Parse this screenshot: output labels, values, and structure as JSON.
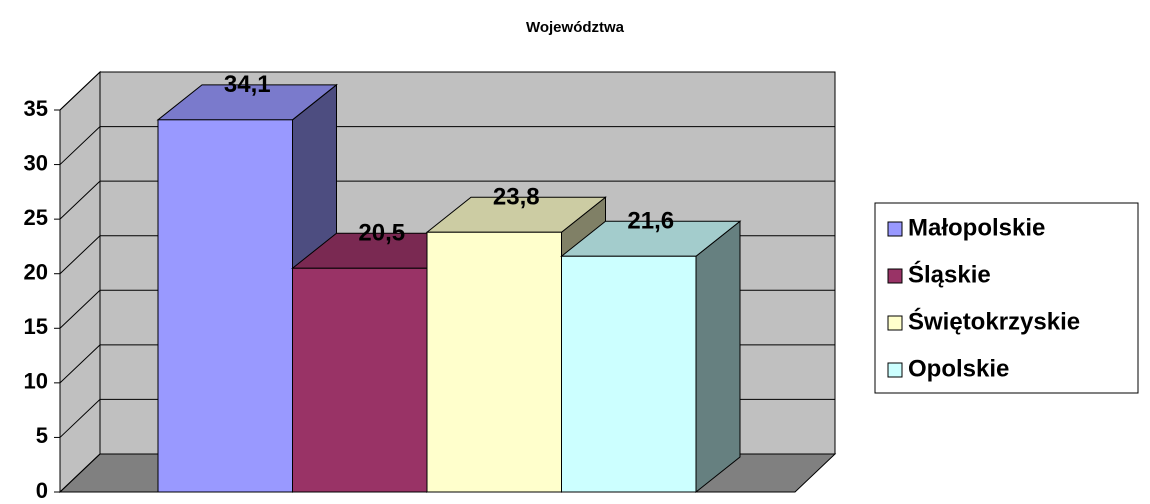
{
  "chart_data": {
    "type": "bar",
    "title": "Województwa",
    "categories": [
      null
    ],
    "series": [
      {
        "name": "Małopolskie",
        "color": "#9999ff",
        "values": [
          34.1
        ],
        "value_labels": [
          "34,1"
        ]
      },
      {
        "name": "Śląskie",
        "color": "#993366",
        "values": [
          20.5
        ],
        "value_labels": [
          "20,5"
        ]
      },
      {
        "name": "Świętokrzyskie",
        "color": "#ffffcc",
        "values": [
          23.8
        ],
        "value_labels": [
          "23,8"
        ]
      },
      {
        "name": "Opolskie",
        "color": "#ccffff",
        "values": [
          21.6
        ],
        "value_labels": [
          "21,6"
        ]
      }
    ],
    "ylim": [
      0,
      35
    ],
    "yticks": [
      0,
      5,
      10,
      15,
      20,
      25,
      30,
      35
    ],
    "grid": true,
    "legend": "right"
  }
}
